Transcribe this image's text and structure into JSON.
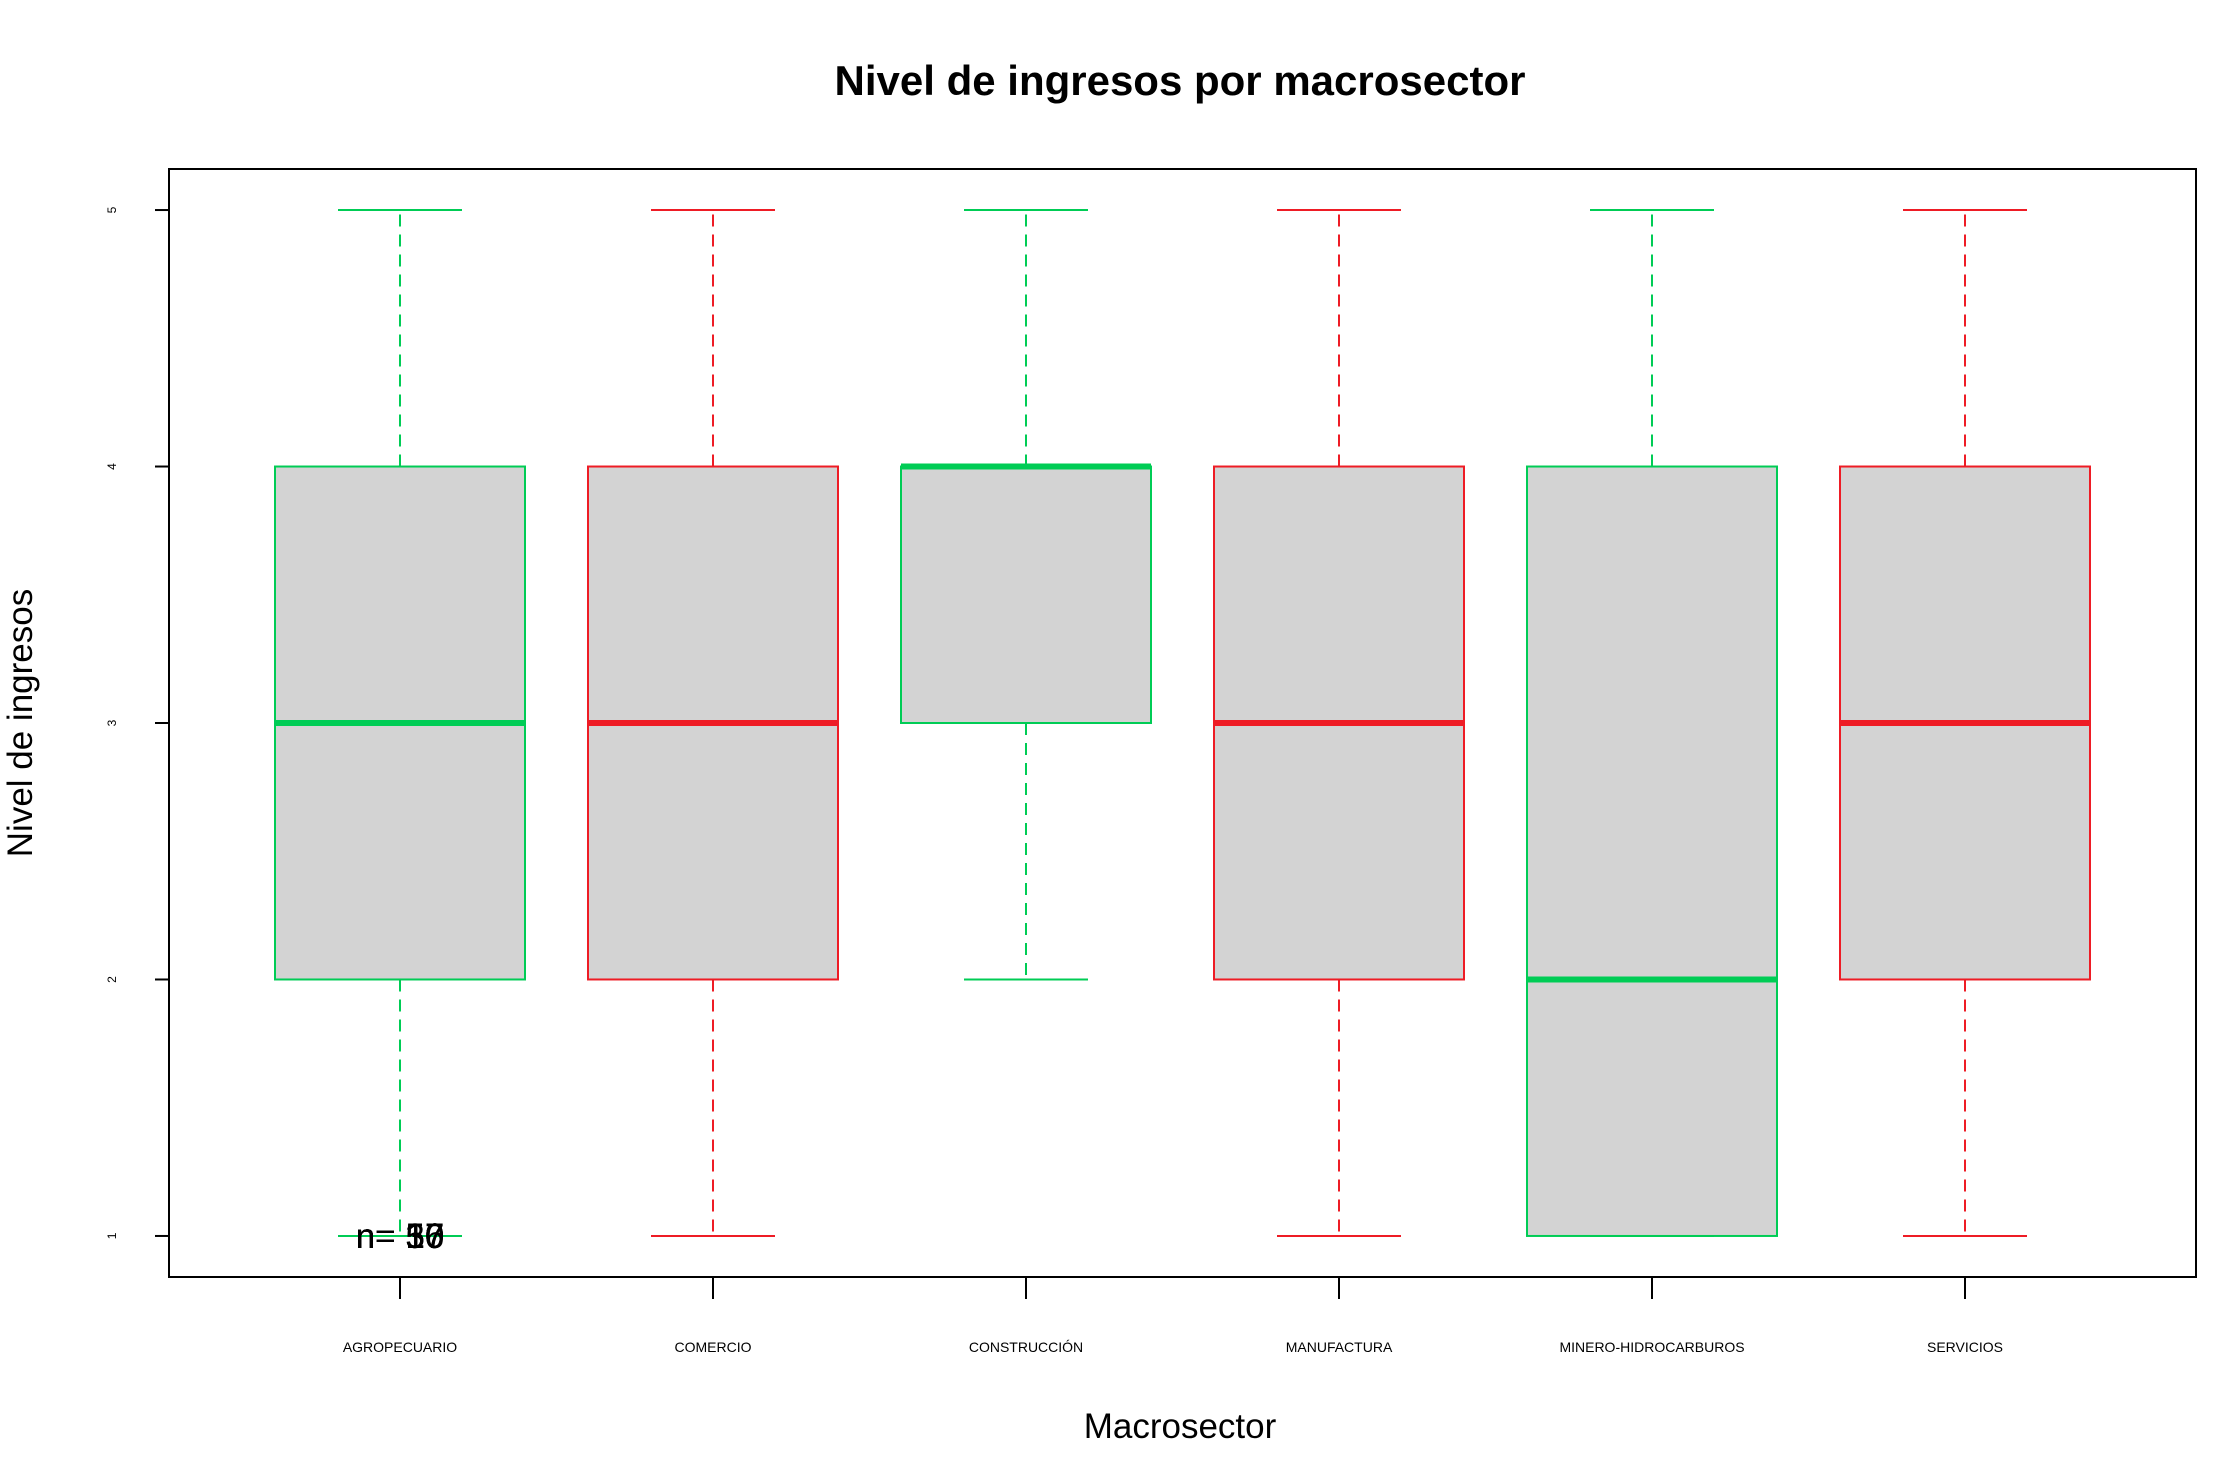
{
  "chart_data": {
    "type": "boxplot",
    "title": "Nivel de ingresos por macrosector",
    "xlabel": "Macrosector",
    "ylabel": "Nivel de ingresos",
    "ylim": [
      0.84,
      5.16
    ],
    "y_ticks": [
      1,
      2,
      3,
      4,
      5
    ],
    "categories": [
      "AGROPECUARIO",
      "COMERCIO",
      "CONSTRUCCIÓN",
      "MANUFACTURA",
      "MINERO-HIDROCARBUROS",
      "SERVICIOS"
    ],
    "boxes": [
      {
        "category": "AGROPECUARIO",
        "whisker_low": 1,
        "q1": 2,
        "median": 3,
        "q3": 4,
        "whisker_high": 5,
        "color": "#00cc55"
      },
      {
        "category": "COMERCIO",
        "whisker_low": 1,
        "q1": 2,
        "median": 3,
        "q3": 4,
        "whisker_high": 5,
        "color": "#ee1c25"
      },
      {
        "category": "CONSTRUCCIÓN",
        "whisker_low": 2,
        "q1": 3,
        "median": 4,
        "q3": 4,
        "whisker_high": 5,
        "color": "#00cc55"
      },
      {
        "category": "MANUFACTURA",
        "whisker_low": 1,
        "q1": 2,
        "median": 3,
        "q3": 4,
        "whisker_high": 5,
        "color": "#ee1c25"
      },
      {
        "category": "MINERO-HIDROCARBUROS",
        "whisker_low": 1,
        "q1": 1,
        "median": 2,
        "q3": 4,
        "whisker_high": 5,
        "color": "#00cc55"
      },
      {
        "category": "SERVICIOS",
        "whisker_low": 1,
        "q1": 2,
        "median": 3,
        "q3": 4,
        "whisker_high": 5,
        "color": "#ee1c25"
      }
    ],
    "box_fill": "#d3d3d3",
    "overlay_labels": {
      "y_value": 1,
      "texts": [
        "n= 10",
        "n= 30",
        "n= 17",
        "n= 57",
        "n= 16",
        "n= 50"
      ]
    }
  }
}
